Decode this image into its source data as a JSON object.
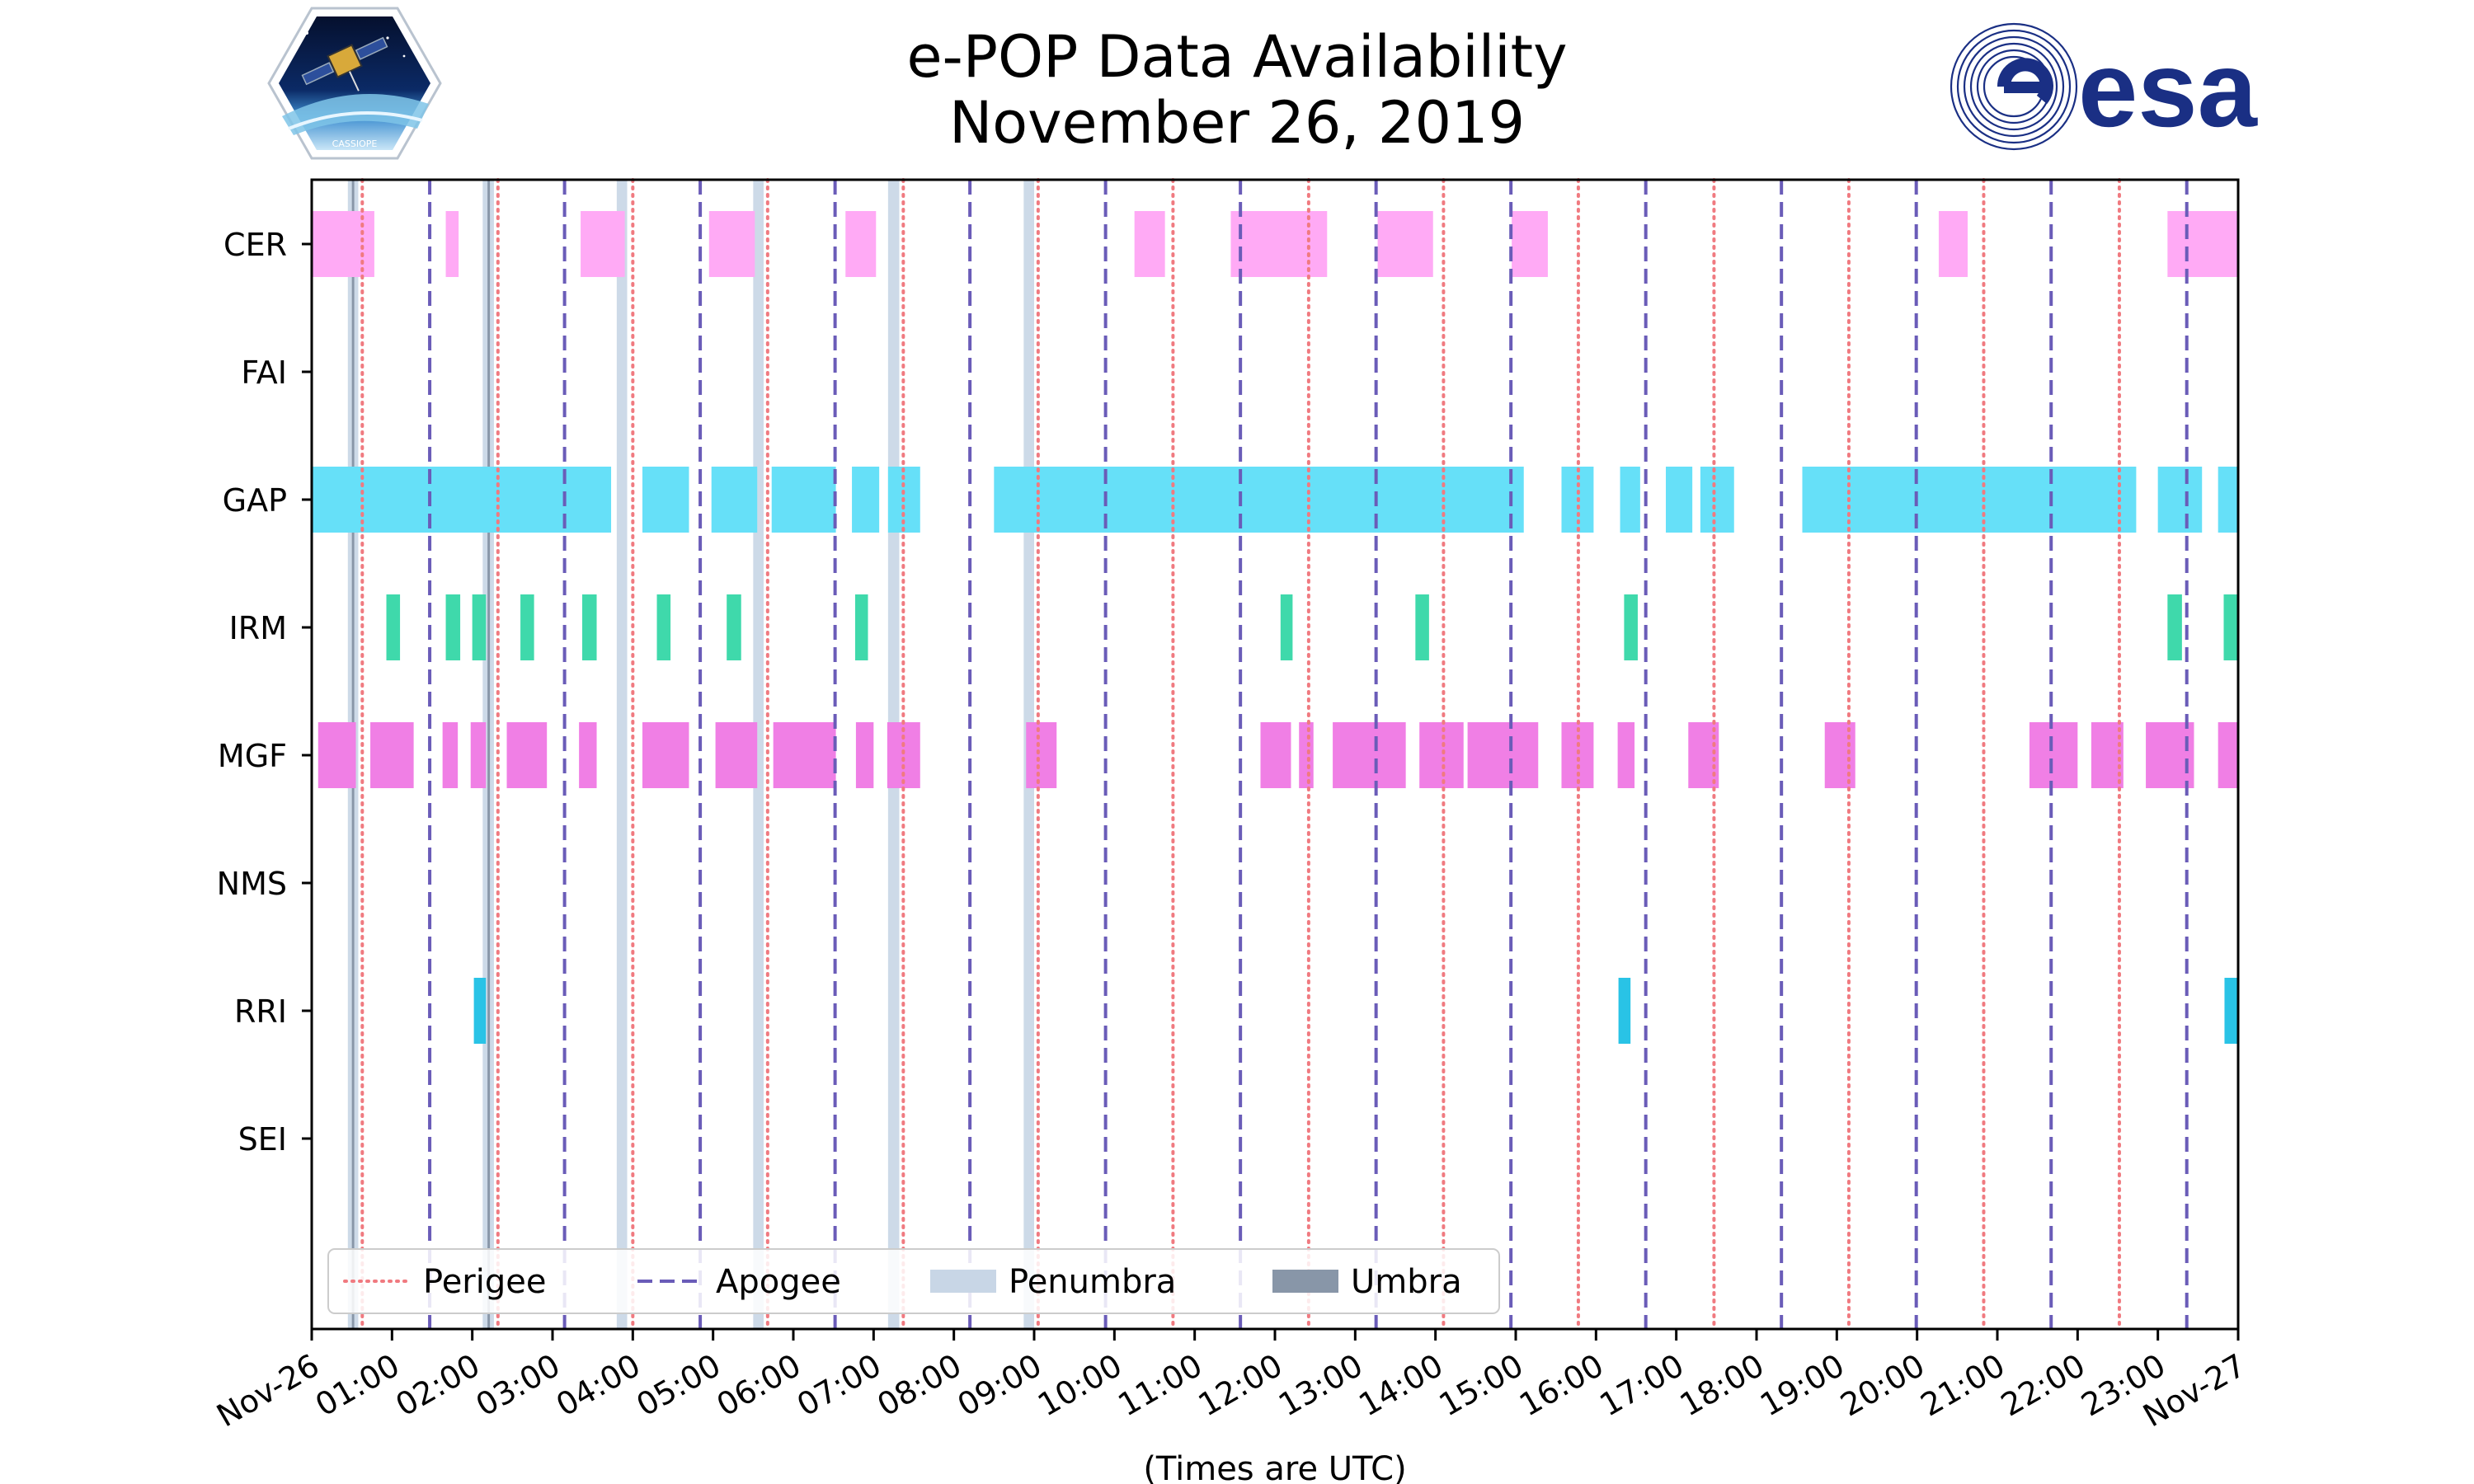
{
  "chart_data": {
    "type": "timeline",
    "title": "e-POP Data Availability",
    "subtitle": "November 26, 2019",
    "xlabel": "(Times are UTC)",
    "x_unit": "hours since 2019-11-26 00:00 UTC",
    "x_range": [
      0,
      24
    ],
    "tick_labels": [
      "Nov-26",
      "01:00",
      "02:00",
      "03:00",
      "04:00",
      "05:00",
      "06:00",
      "07:00",
      "08:00",
      "09:00",
      "10:00",
      "11:00",
      "12:00",
      "13:00",
      "14:00",
      "15:00",
      "16:00",
      "17:00",
      "18:00",
      "19:00",
      "20:00",
      "21:00",
      "22:00",
      "23:00",
      "Nov-27"
    ],
    "instruments": [
      "CER",
      "FAI",
      "GAP",
      "IRM",
      "MGF",
      "NMS",
      "RRI",
      "SEI"
    ],
    "series": [
      {
        "name": "CER",
        "color": "#ffaaf5",
        "intervals": [
          [
            0.0,
            0.78
          ],
          [
            1.67,
            1.83
          ],
          [
            3.35,
            3.9
          ],
          [
            4.95,
            5.52
          ],
          [
            6.65,
            7.03
          ],
          [
            10.25,
            10.63
          ],
          [
            11.45,
            12.65
          ],
          [
            13.28,
            13.97
          ],
          [
            14.95,
            15.4
          ],
          [
            20.27,
            20.63
          ],
          [
            23.12,
            24.0
          ]
        ]
      },
      {
        "name": "FAI",
        "color": "#66aa66",
        "intervals": []
      },
      {
        "name": "GAP",
        "color": "#66e0f8",
        "intervals": [
          [
            0.0,
            3.73
          ],
          [
            4.12,
            4.7
          ],
          [
            4.98,
            5.55
          ],
          [
            5.73,
            6.53
          ],
          [
            6.73,
            7.07
          ],
          [
            7.18,
            7.58
          ],
          [
            8.5,
            15.1
          ],
          [
            15.57,
            15.97
          ],
          [
            16.3,
            16.55
          ],
          [
            16.87,
            17.2
          ],
          [
            17.3,
            17.72
          ],
          [
            18.57,
            22.73
          ],
          [
            23.0,
            23.55
          ],
          [
            23.75,
            24.0
          ]
        ]
      },
      {
        "name": "IRM",
        "color": "#3fd9ab",
        "intervals": [
          [
            0.93,
            1.1
          ],
          [
            1.67,
            1.85
          ],
          [
            2.0,
            2.17
          ],
          [
            2.6,
            2.77
          ],
          [
            3.37,
            3.55
          ],
          [
            4.3,
            4.47
          ],
          [
            5.17,
            5.35
          ],
          [
            6.77,
            6.93
          ],
          [
            12.07,
            12.22
          ],
          [
            13.75,
            13.92
          ],
          [
            16.35,
            16.52
          ],
          [
            23.12,
            23.3
          ],
          [
            23.82,
            24.0
          ]
        ]
      },
      {
        "name": "MGF",
        "color": "#f07fe5",
        "intervals": [
          [
            0.08,
            0.55
          ],
          [
            0.73,
            1.27
          ],
          [
            1.63,
            1.82
          ],
          [
            1.98,
            2.17
          ],
          [
            2.43,
            2.93
          ],
          [
            3.33,
            3.55
          ],
          [
            4.12,
            4.7
          ],
          [
            5.03,
            5.55
          ],
          [
            5.75,
            6.53
          ],
          [
            6.78,
            7.0
          ],
          [
            7.17,
            7.58
          ],
          [
            8.9,
            9.28
          ],
          [
            11.82,
            12.2
          ],
          [
            12.3,
            12.48
          ],
          [
            12.72,
            13.63
          ],
          [
            13.8,
            14.35
          ],
          [
            14.4,
            15.28
          ],
          [
            15.57,
            15.97
          ],
          [
            16.27,
            16.48
          ],
          [
            17.15,
            17.53
          ],
          [
            18.85,
            19.23
          ],
          [
            21.4,
            22.0
          ],
          [
            22.17,
            22.57
          ],
          [
            22.85,
            23.45
          ],
          [
            23.75,
            24.0
          ]
        ]
      },
      {
        "name": "NMS",
        "color": "#66aa66",
        "intervals": []
      },
      {
        "name": "RRI",
        "color": "#29c3e6",
        "intervals": [
          [
            2.02,
            2.17
          ],
          [
            16.28,
            16.43
          ],
          [
            23.83,
            24.0
          ]
        ]
      },
      {
        "name": "SEI",
        "color": "#66aa66",
        "intervals": []
      }
    ],
    "perigee_times": [
      0.63,
      2.32,
      4.0,
      5.68,
      7.37,
      9.05,
      10.73,
      12.42,
      14.1,
      15.78,
      17.47,
      19.15,
      20.83,
      22.52
    ],
    "apogee_times": [
      1.47,
      3.15,
      4.84,
      6.52,
      8.2,
      9.89,
      11.57,
      13.26,
      14.94,
      16.62,
      18.31,
      19.99,
      21.67,
      23.36
    ],
    "penumbra_bands": [
      [
        0.45,
        0.58
      ],
      [
        2.13,
        2.27
      ],
      [
        3.8,
        3.93
      ],
      [
        5.5,
        5.63
      ],
      [
        7.18,
        7.32
      ],
      [
        8.87,
        9.0
      ]
    ],
    "umbra_bands": [
      [
        0.5,
        0.53
      ],
      [
        2.19,
        2.22
      ]
    ],
    "legend": {
      "position": "lower-left",
      "entries": [
        {
          "label": "Perigee",
          "color": "#f07a80",
          "style": "dotted"
        },
        {
          "label": "Apogee",
          "color": "#6a5cb8",
          "style": "dashed"
        },
        {
          "label": "Penumbra",
          "color": "#c8d6e6",
          "style": "patch"
        },
        {
          "label": "Umbra",
          "color": "#8896a8",
          "style": "patch"
        }
      ]
    }
  },
  "logos": {
    "left": {
      "name": "CASSIOPE",
      "text": "CASSIOPE"
    },
    "right": {
      "name": "esa",
      "text": "esa",
      "color": "#1a2f84"
    }
  }
}
